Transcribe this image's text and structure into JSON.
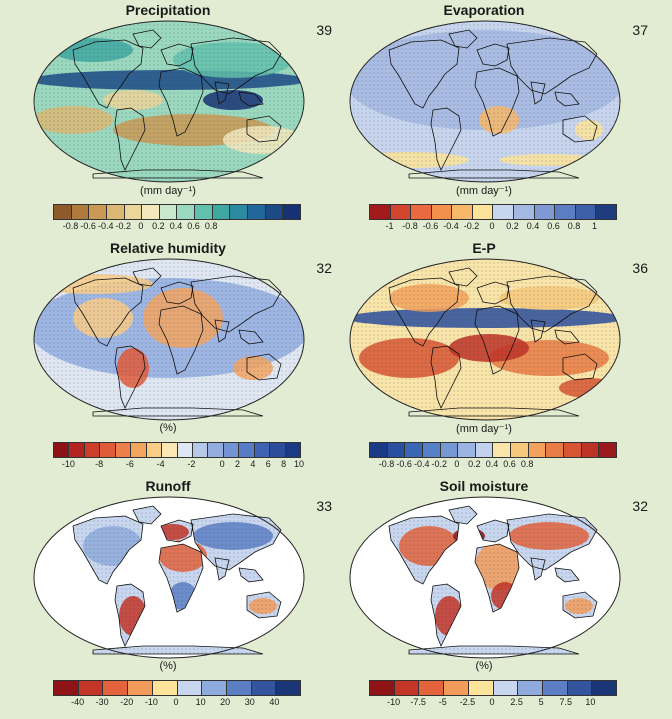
{
  "panels": [
    {
      "title": "Precipitation",
      "count": "39",
      "unit": "(mm day⁻¹)",
      "ticks": [
        "-0.8",
        "-0.6",
        "-0.4",
        "-0.2",
        "0",
        "0.2",
        "0.4",
        "0.6",
        "0.8"
      ],
      "colors": [
        "#8e5a2a",
        "#b07a3e",
        "#c99a55",
        "#dcb874",
        "#ecd59a",
        "#f3e8bd",
        "#c9e7cc",
        "#9ad8bf",
        "#62c1ac",
        "#3fa8a0",
        "#2c8ba1",
        "#22679a",
        "#1c4a86",
        "#173274"
      ],
      "tick_positions": [
        1,
        2,
        3,
        4,
        5,
        6,
        7,
        8,
        9
      ],
      "map_style": "precip",
      "land": true
    },
    {
      "title": "Evaporation",
      "count": "37",
      "unit": "(mm day⁻¹)",
      "ticks": [
        "-1",
        "-0.8",
        "-0.6",
        "-0.4",
        "-0.2",
        "0",
        "0.2",
        "0.4",
        "0.6",
        "0.8",
        "1"
      ],
      "colors": [
        "#a31a1c",
        "#d2452e",
        "#ea6a3f",
        "#f3914c",
        "#f8b86a",
        "#fbe49a",
        "#c7d5ee",
        "#a3b9e2",
        "#7f9ad3",
        "#5d7dc3",
        "#3d5ea8",
        "#1f3c7e"
      ],
      "tick_positions": [
        1,
        2,
        3,
        4,
        5,
        6,
        7,
        8,
        9,
        10,
        11
      ],
      "map_style": "evap",
      "land": true
    },
    {
      "title": "Relative humidity",
      "count": "32",
      "unit": "(%)",
      "ticks": [
        "-10",
        "-8",
        "-6",
        "-4",
        "-2",
        "0",
        "2",
        "4",
        "6",
        "8",
        "10"
      ],
      "colors": [
        "#8c1216",
        "#b3241f",
        "#cd3d2b",
        "#e05b39",
        "#ee7e4a",
        "#f3a560",
        "#f9cd86",
        "#fbe7b4",
        "#dfe7f3",
        "#b7c9e8",
        "#93ade0",
        "#7393d3",
        "#577bc5",
        "#3f63b3",
        "#2c4d9c",
        "#1c3983"
      ],
      "tick_positions": [
        1,
        3,
        5,
        7,
        9,
        11,
        12,
        13,
        14,
        15,
        16
      ],
      "map_style": "rh",
      "land": true
    },
    {
      "title": "E-P",
      "count": "36",
      "unit": "(mm day⁻¹)",
      "ticks": [
        "-0.8",
        "-0.6",
        "-0.4",
        "-0.2",
        "0",
        "0.2",
        "0.4",
        "0.6",
        "0.8"
      ],
      "colors": [
        "#1a3a85",
        "#2a4f9f",
        "#3a66b4",
        "#5580c6",
        "#7799d3",
        "#9cb4e1",
        "#c3d2ec",
        "#f9e5aa",
        "#f6c87c",
        "#f2a25d",
        "#e97b45",
        "#d75533",
        "#bd3127",
        "#9b1b1d"
      ],
      "tick_positions": [
        1,
        2,
        3,
        4,
        5,
        6,
        7,
        8,
        9
      ],
      "map_style": "ep",
      "land": true
    },
    {
      "title": "Runoff",
      "count": "33",
      "unit": "(%)",
      "ticks": [
        "-40",
        "-30",
        "-20",
        "-10",
        "0",
        "10",
        "20",
        "30",
        "40"
      ],
      "colors": [
        "#8e1417",
        "#c23527",
        "#e2633c",
        "#f29b5a",
        "#fbe39a",
        "#c8d7ef",
        "#8fabdc",
        "#5c7fc4",
        "#32559e",
        "#1b3677"
      ],
      "tick_positions": [
        1,
        2,
        3,
        4,
        5,
        6,
        7,
        8,
        9
      ],
      "map_style": "runoff",
      "land": false
    },
    {
      "title": "Soil moisture",
      "count": "32",
      "unit": "(%)",
      "ticks": [
        "-10",
        "-7.5",
        "-5",
        "-2.5",
        "0",
        "2.5",
        "5",
        "7.5",
        "10"
      ],
      "colors": [
        "#8e1417",
        "#c23527",
        "#e2633c",
        "#f29b5a",
        "#fbe39a",
        "#c8d7ef",
        "#8fabdc",
        "#5c7fc4",
        "#32559e",
        "#1b3677"
      ],
      "tick_positions": [
        1,
        2,
        3,
        4,
        5,
        6,
        7,
        8,
        9
      ],
      "map_style": "soil",
      "land": false
    }
  ]
}
